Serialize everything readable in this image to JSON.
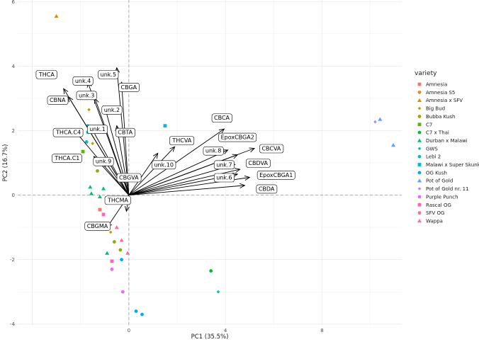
{
  "chart_data": {
    "type": "scatter",
    "title": "",
    "xlabel": "PC1 (35.5%)",
    "ylabel": "PC2 (16.7%)",
    "xlim": [
      -4.6,
      11.3
    ],
    "ylim": [
      -4.05,
      6.05
    ],
    "x_ticks": [
      0,
      4,
      8
    ],
    "y_ticks": [
      -4,
      -2,
      0,
      2,
      4,
      6
    ],
    "grid": true,
    "reference_lines": {
      "x": 0,
      "y": 0
    },
    "legend": {
      "title": "variety",
      "placement": "right",
      "entries": [
        {
          "name": "Amnesia",
          "color": "#F8766D",
          "shape": "square"
        },
        {
          "name": "Amnesia S5",
          "color": "#E7861B",
          "shape": "circle"
        },
        {
          "name": "Amnesia x SFV",
          "color": "#D39200",
          "shape": "triangle"
        },
        {
          "name": "Big Bud",
          "color": "#BE9C00",
          "shape": "diamond"
        },
        {
          "name": "Bubba Kush",
          "color": "#93AA00",
          "shape": "circle"
        },
        {
          "name": "C7",
          "color": "#5EB300",
          "shape": "square"
        },
        {
          "name": "C7 x Thai",
          "color": "#00BA38",
          "shape": "circle"
        },
        {
          "name": "Durban x Malawi",
          "color": "#00BF74",
          "shape": "triangle"
        },
        {
          "name": "GWS",
          "color": "#00C19F",
          "shape": "diamond"
        },
        {
          "name": "Lebi 2",
          "color": "#00BFC4",
          "shape": "circle"
        },
        {
          "name": "Malawi x Super Skunk",
          "color": "#00B8E7",
          "shape": "square"
        },
        {
          "name": "OG Kush",
          "color": "#00A9FF",
          "shape": "circle"
        },
        {
          "name": "Pot of Gold",
          "color": "#619CFF",
          "shape": "triangle"
        },
        {
          "name": "Pot of Gold nr. 11",
          "color": "#AB88FF",
          "shape": "diamond"
        },
        {
          "name": "Purple Punch",
          "color": "#E76BF3",
          "shape": "circle"
        },
        {
          "name": "Rascal OG",
          "color": "#FF62BC",
          "shape": "square"
        },
        {
          "name": "SFV OG",
          "color": "#FF6C91",
          "shape": "circle"
        },
        {
          "name": "Wappa",
          "color": "#FF6C91",
          "shape": "triangle"
        }
      ]
    },
    "points": [
      {
        "variety": "Amnesia x SFV",
        "x": -3.0,
        "y": 5.55
      },
      {
        "variety": "Amnesia S5",
        "x": -1.9,
        "y": 3.55
      },
      {
        "variety": "Big Bud",
        "x": -1.65,
        "y": 2.65
      },
      {
        "variety": "C7",
        "x": -1.9,
        "y": 1.35
      },
      {
        "variety": "Lebi 2",
        "x": -1.7,
        "y": 2.15
      },
      {
        "variety": "Lebi 2",
        "x": -1.7,
        "y": 1.95
      },
      {
        "variety": "Lebi 2",
        "x": -1.75,
        "y": 1.65
      },
      {
        "variety": "Big Bud",
        "x": -1.5,
        "y": 1.6
      },
      {
        "variety": "Purple Punch",
        "x": -1.35,
        "y": 0.95
      },
      {
        "variety": "Bubba Kush",
        "x": -1.3,
        "y": 0.75
      },
      {
        "variety": "Pot of Gold nr. 11",
        "x": -1.25,
        "y": 1.0
      },
      {
        "variety": "Durban x Malawi",
        "x": -1.6,
        "y": 0.25
      },
      {
        "variety": "Durban x Malawi",
        "x": -1.55,
        "y": 0.05
      },
      {
        "variety": "Durban x Malawi",
        "x": -1.05,
        "y": 0.2
      },
      {
        "variety": "Durban x Malawi",
        "x": -1.2,
        "y": -0.05
      },
      {
        "variety": "Amnesia",
        "x": -0.85,
        "y": -0.2
      },
      {
        "variety": "Amnesia",
        "x": -1.2,
        "y": -0.45
      },
      {
        "variety": "Rascal OG",
        "x": -1.05,
        "y": -0.6
      },
      {
        "variety": "Amnesia",
        "x": -1.0,
        "y": -0.95
      },
      {
        "variety": "Big Bud",
        "x": -0.75,
        "y": -1.15
      },
      {
        "variety": "Bubba Kush",
        "x": -0.6,
        "y": -1.45
      },
      {
        "variety": "Wappa",
        "x": -0.5,
        "y": -1.0
      },
      {
        "variety": "Wappa",
        "x": -0.3,
        "y": -1.4
      },
      {
        "variety": "Bubba Kush",
        "x": -0.35,
        "y": -1.7
      },
      {
        "variety": "Wappa",
        "x": -0.05,
        "y": -1.8
      },
      {
        "variety": "Durban x Malawi",
        "x": -0.9,
        "y": -1.8
      },
      {
        "variety": "Rascal OG",
        "x": -0.7,
        "y": -2.05
      },
      {
        "variety": "Purple Punch",
        "x": -0.7,
        "y": -2.3
      },
      {
        "variety": "OG Kush",
        "x": -0.3,
        "y": -2.0
      },
      {
        "variety": "Purple Punch",
        "x": -0.25,
        "y": -3.0
      },
      {
        "variety": "OG Kush",
        "x": 0.3,
        "y": -3.6
      },
      {
        "variety": "OG Kush",
        "x": 0.55,
        "y": -3.7
      },
      {
        "variety": "Malawi x Super Skunk",
        "x": 1.5,
        "y": 2.15
      },
      {
        "variety": "C7 x Thai",
        "x": 3.4,
        "y": -2.35
      },
      {
        "variety": "GWS",
        "x": 3.7,
        "y": -3.0
      },
      {
        "variety": "Pot of Gold",
        "x": 10.4,
        "y": 2.35
      },
      {
        "variety": "Pot of Gold nr. 11",
        "x": 10.2,
        "y": 2.27
      },
      {
        "variety": "Pot of Gold",
        "x": 10.95,
        "y": 1.55
      }
    ],
    "loadings": [
      {
        "name": "THCA",
        "x": -2.7,
        "y": 3.3
      },
      {
        "name": "unk.4",
        "x": -1.7,
        "y": 3.5
      },
      {
        "name": "CBNA",
        "x": -2.5,
        "y": 3.05
      },
      {
        "name": "unk.5",
        "x": -0.5,
        "y": 3.95
      },
      {
        "name": "unk.3",
        "x": -1.4,
        "y": 3.0
      },
      {
        "name": "CBGA",
        "x": -0.3,
        "y": 3.5
      },
      {
        "name": "unk.2",
        "x": -1.0,
        "y": 2.75
      },
      {
        "name": "THCA.C4",
        "x": -2.3,
        "y": 2.05
      },
      {
        "name": "unk.1",
        "x": -1.6,
        "y": 2.15
      },
      {
        "name": "CBTA",
        "x": -0.5,
        "y": 2.15
      },
      {
        "name": "THCA.C1",
        "x": -1.45,
        "y": 1.2
      },
      {
        "name": "unk.9",
        "x": -1.0,
        "y": 1.05
      },
      {
        "name": "CBGVA",
        "x": -0.2,
        "y": 0.55
      },
      {
        "name": "unk.10",
        "x": 1.2,
        "y": 1.3
      },
      {
        "name": "THCVA",
        "x": 1.9,
        "y": 1.5
      },
      {
        "name": "CBCA",
        "x": 3.95,
        "y": 2.05
      },
      {
        "name": "EpoxCBGA2",
        "x": 4.1,
        "y": 1.4
      },
      {
        "name": "CBCVA",
        "x": 5.2,
        "y": 1.45
      },
      {
        "name": "unk.8",
        "x": 4.5,
        "y": 1.25
      },
      {
        "name": "CBDVA",
        "x": 4.6,
        "y": 0.8
      },
      {
        "name": "unk.7",
        "x": 4.4,
        "y": 0.95
      },
      {
        "name": "EpoxCBGA1",
        "x": 5.0,
        "y": 0.55
      },
      {
        "name": "unk.6",
        "x": 4.5,
        "y": 0.65
      },
      {
        "name": "CBDA",
        "x": 4.8,
        "y": 0.3
      },
      {
        "name": "THCMA",
        "x": -0.1,
        "y": -0.5
      },
      {
        "name": "CBGMA",
        "x": -0.9,
        "y": -1.0
      }
    ],
    "loading_labels": [
      {
        "name": "THCA",
        "x": -3.4,
        "y": 3.75
      },
      {
        "name": "unk.4",
        "x": -1.9,
        "y": 3.55
      },
      {
        "name": "CBNA",
        "x": -2.95,
        "y": 2.95
      },
      {
        "name": "unk.5",
        "x": -0.85,
        "y": 3.75
      },
      {
        "name": "unk.3",
        "x": -1.75,
        "y": 3.1
      },
      {
        "name": "CBGA",
        "x": 0.0,
        "y": 3.35
      },
      {
        "name": "unk.2",
        "x": -0.7,
        "y": 2.65
      },
      {
        "name": "THCA.C4",
        "x": -2.5,
        "y": 1.95
      },
      {
        "name": "unk.1",
        "x": -1.3,
        "y": 2.05
      },
      {
        "name": "CBTA",
        "x": -0.15,
        "y": 1.95
      },
      {
        "name": "THCA.C1",
        "x": -2.55,
        "y": 1.15
      },
      {
        "name": "unk.9",
        "x": -1.05,
        "y": 1.05
      },
      {
        "name": "CBGVA",
        "x": 0.0,
        "y": 0.55
      },
      {
        "name": "unk.10",
        "x": 1.45,
        "y": 0.95
      },
      {
        "name": "THCVA",
        "x": 2.2,
        "y": 1.7
      },
      {
        "name": "CBCA",
        "x": 3.85,
        "y": 2.4
      },
      {
        "name": "EpoxCBGA2",
        "x": 4.5,
        "y": 1.8
      },
      {
        "name": "CBCVA",
        "x": 5.9,
        "y": 1.45
      },
      {
        "name": "unk.8",
        "x": 3.5,
        "y": 1.38
      },
      {
        "name": "CBDVA",
        "x": 5.35,
        "y": 1.0
      },
      {
        "name": "unk.7",
        "x": 3.95,
        "y": 0.95
      },
      {
        "name": "EpoxCBGA1",
        "x": 6.1,
        "y": 0.63
      },
      {
        "name": "unk.6",
        "x": 3.95,
        "y": 0.55
      },
      {
        "name": "CBDA",
        "x": 5.7,
        "y": 0.2
      },
      {
        "name": "THCMA",
        "x": -0.45,
        "y": -0.15
      },
      {
        "name": "CBGMA",
        "x": -1.3,
        "y": -0.95
      }
    ]
  }
}
